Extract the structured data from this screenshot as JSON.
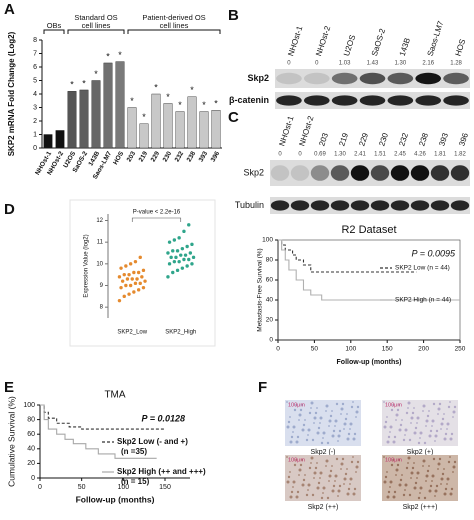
{
  "panel_labels": [
    "A",
    "B",
    "C",
    "D",
    "E",
    "F"
  ],
  "chart_data": [
    {
      "type": "bar",
      "ylabel": "SKP2 mRNA Fold Change (Log2)",
      "categories": [
        "NHOst-1",
        "NHOst-2",
        "U2OS",
        "SaOS-2",
        "143B",
        "Saos-LM7",
        "HOS",
        "203",
        "219",
        "229",
        "230",
        "232",
        "238",
        "393",
        "396"
      ],
      "values": [
        1.0,
        1.3,
        4.2,
        4.3,
        5.0,
        6.3,
        6.4,
        3.0,
        1.8,
        4.0,
        3.3,
        2.7,
        3.8,
        2.7,
        2.8
      ],
      "colors": [
        "#111111",
        "#111111",
        "#555555",
        "#5e5e5e",
        "#676767",
        "#707070",
        "#7a7a7a",
        "#c8c8c8",
        "#c8c8c8",
        "#c8c8c8",
        "#c8c8c8",
        "#c8c8c8",
        "#c8c8c8",
        "#c8c8c8",
        "#c8c8c8"
      ],
      "significance": [
        null,
        null,
        "*",
        "*",
        "*",
        "*",
        "*",
        "*",
        "*",
        "*",
        "*",
        "*",
        "*",
        "*",
        "*"
      ],
      "groups": [
        [
          "OBs"
        ],
        [
          "Standard OS",
          "cell lines"
        ],
        [
          "Patient-derived OS",
          "cell lines"
        ]
      ],
      "ylim": [
        0,
        8
      ],
      "yticks": [
        0,
        1,
        2,
        3,
        4,
        5,
        6,
        7,
        8
      ]
    },
    {
      "type": "scatter",
      "ylabel": "Expression Value (log2)",
      "annotation": "P-value < 2.2e-16",
      "categories": [
        "SKP2_Low",
        "SKP2_High"
      ],
      "series": [
        {
          "color": "#e58a2e",
          "values": [
            8.3,
            8.5,
            8.6,
            8.7,
            8.8,
            8.9,
            8.9,
            9.0,
            9.0,
            9.1,
            9.1,
            9.2,
            9.2,
            9.3,
            9.3,
            9.3,
            9.4,
            9.4,
            9.5,
            9.5,
            9.6,
            9.6,
            9.7,
            9.8,
            9.9,
            10.0,
            10.1,
            10.3
          ]
        },
        {
          "color": "#2fa58b",
          "values": [
            9.4,
            9.6,
            9.7,
            9.8,
            9.9,
            10.0,
            10.0,
            10.1,
            10.1,
            10.2,
            10.2,
            10.3,
            10.3,
            10.3,
            10.4,
            10.4,
            10.5,
            10.5,
            10.6,
            10.6,
            10.7,
            10.8,
            10.9,
            11.0,
            11.1,
            11.2,
            11.5,
            11.8
          ]
        }
      ],
      "ylim": [
        7.5,
        12.3
      ],
      "yticks": [
        8,
        9,
        10,
        11,
        12
      ]
    },
    {
      "type": "line",
      "title": "R2 Dataset",
      "annotation": "P = 0.0095",
      "xlabel": "Follow-up (months)",
      "ylabel": "Metastasis-Free Survival (%)",
      "xlim": [
        0,
        250
      ],
      "xticks": [
        0,
        50,
        100,
        150,
        200,
        250
      ],
      "ylim": [
        0,
        100
      ],
      "yticks": [
        0,
        20,
        40,
        60,
        80,
        100
      ],
      "series": [
        {
          "name": [
            "SKP2 Low (n = 44)"
          ],
          "color": "#333333",
          "line_style": "dashed",
          "x": [
            0,
            5,
            10,
            20,
            25,
            35,
            45,
            190
          ],
          "values": [
            100,
            95,
            90,
            85,
            80,
            75,
            68,
            68
          ]
        },
        {
          "name": [
            "SKP2 High (n = 44)"
          ],
          "color": "#b0b0b0",
          "line_style": "solid",
          "x": [
            0,
            5,
            10,
            15,
            25,
            35,
            45,
            60,
            250
          ],
          "values": [
            100,
            90,
            80,
            70,
            60,
            50,
            45,
            40,
            40
          ]
        }
      ]
    },
    {
      "type": "line",
      "title": "TMA",
      "annotation": "P = 0.0128",
      "xlabel": "Follow-up (months)",
      "ylabel": "Cumulative Survival (%)",
      "xlim": [
        0,
        180
      ],
      "xticks": [
        0,
        50,
        100,
        150
      ],
      "ylim": [
        0,
        100
      ],
      "yticks": [
        0,
        20,
        40,
        60,
        80,
        100
      ],
      "series": [
        {
          "name": [
            "Skp2 Low (- and +)",
            "(n =35)"
          ],
          "color": "#333333",
          "line_style": "dashed",
          "x": [
            0,
            5,
            10,
            20,
            35,
            50,
            150
          ],
          "values": [
            100,
            90,
            82,
            75,
            70,
            67,
            67
          ]
        },
        {
          "name": [
            "Skp2 High (++ and +++)",
            "(n = 15)"
          ],
          "color": "#a8a8a8",
          "line_style": "solid",
          "x": [
            0,
            5,
            10,
            20,
            30,
            40,
            55,
            70,
            90,
            140
          ],
          "values": [
            100,
            80,
            67,
            60,
            53,
            47,
            40,
            33,
            27,
            27
          ]
        }
      ]
    }
  ],
  "blots": [
    {
      "lanes": [
        "NHOst-1",
        "NHOst-2",
        "U2OS",
        "SaOS-2",
        "143B",
        "Saos-LM7",
        "HOS"
      ],
      "quantification": [
        "0",
        "0",
        "1.03",
        "1.43",
        "1.30",
        "2.16",
        "1.28"
      ],
      "rows": [
        "Skp2",
        "β-catenin"
      ]
    },
    {
      "lanes": [
        "NHOst-1",
        "NHOst-2",
        "203",
        "219",
        "229",
        "230",
        "232",
        "238",
        "393",
        "396"
      ],
      "quantification": [
        "0",
        "0",
        "0.69",
        "1.30",
        "2.41",
        "1.51",
        "2.45",
        "4.26",
        "1.81",
        "1.82"
      ],
      "rows": [
        "Skp2",
        "Tubulin"
      ]
    }
  ],
  "ihc": {
    "scale_label": "100μm",
    "labels": [
      "Skp2 (-)",
      "Skp2 (+)",
      "Skp2 (++)",
      "Skp2 (+++)"
    ]
  }
}
